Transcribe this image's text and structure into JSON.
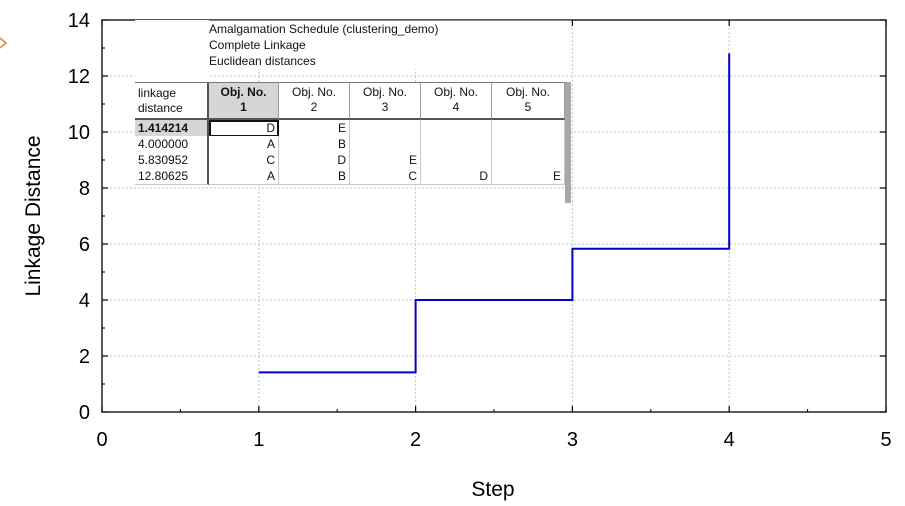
{
  "chart_data": {
    "type": "line",
    "step": true,
    "xlabel": "Step",
    "ylabel": "Linkage Distance",
    "xlim": [
      0,
      5
    ],
    "ylim": [
      0,
      14
    ],
    "x_ticks": [
      0,
      1,
      2,
      3,
      4,
      5
    ],
    "y_ticks": [
      0,
      2,
      4,
      6,
      8,
      10,
      12,
      14
    ],
    "grid": true,
    "line_color": "#0000cc",
    "series": [
      {
        "x": [
          1,
          2,
          3,
          4
        ],
        "y": [
          1.414214,
          4.0,
          5.830952,
          12.80625
        ]
      }
    ],
    "step_top": 12.80625
  },
  "table": {
    "caption": [
      "Amalgamation Schedule (clustering_demo)",
      "Complete Linkage",
      "Euclidean distances"
    ],
    "corner_label": [
      "linkage",
      "distance"
    ],
    "columns": [
      [
        "Obj. No.",
        "1"
      ],
      [
        "Obj. No.",
        "2"
      ],
      [
        "Obj. No.",
        "3"
      ],
      [
        "Obj. No.",
        "4"
      ],
      [
        "Obj. No.",
        "5"
      ]
    ],
    "rows": [
      {
        "label": "1.414214",
        "cells": [
          "D",
          "E",
          "",
          "",
          ""
        ]
      },
      {
        "label": "4.000000",
        "cells": [
          "A",
          "B",
          "",
          "",
          ""
        ]
      },
      {
        "label": "5.830952",
        "cells": [
          "C",
          "D",
          "E",
          "",
          ""
        ]
      },
      {
        "label": "12.80625",
        "cells": [
          "A",
          "B",
          "C",
          "D",
          "E"
        ]
      }
    ]
  }
}
